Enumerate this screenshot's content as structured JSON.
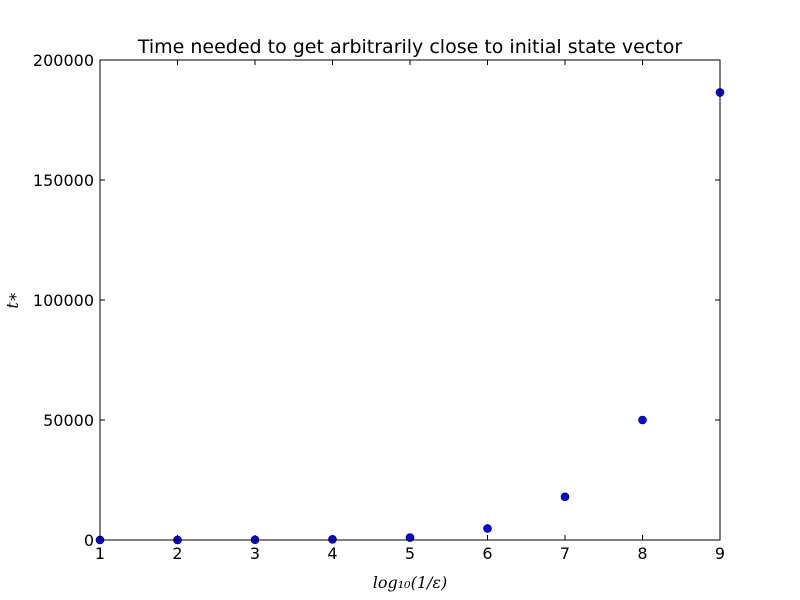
{
  "chart_data": {
    "type": "scatter",
    "title": "Time needed to get arbitrarily close to initial state vector",
    "xlabel": "log₁₀(1/ε)",
    "ylabel": "t∗",
    "xlim": [
      1,
      9
    ],
    "ylim": [
      0,
      200000
    ],
    "x_ticks": [
      1,
      2,
      3,
      4,
      5,
      6,
      7,
      8,
      9
    ],
    "y_ticks": [
      0,
      50000,
      100000,
      150000,
      200000
    ],
    "grid": false,
    "marker_color": "#0000ff",
    "series": [
      {
        "x": [
          1,
          2,
          3,
          4,
          5,
          6,
          7,
          8,
          9
        ],
        "y": [
          10,
          20,
          100,
          300,
          1000,
          4800,
          18000,
          50000,
          186500
        ]
      }
    ]
  }
}
